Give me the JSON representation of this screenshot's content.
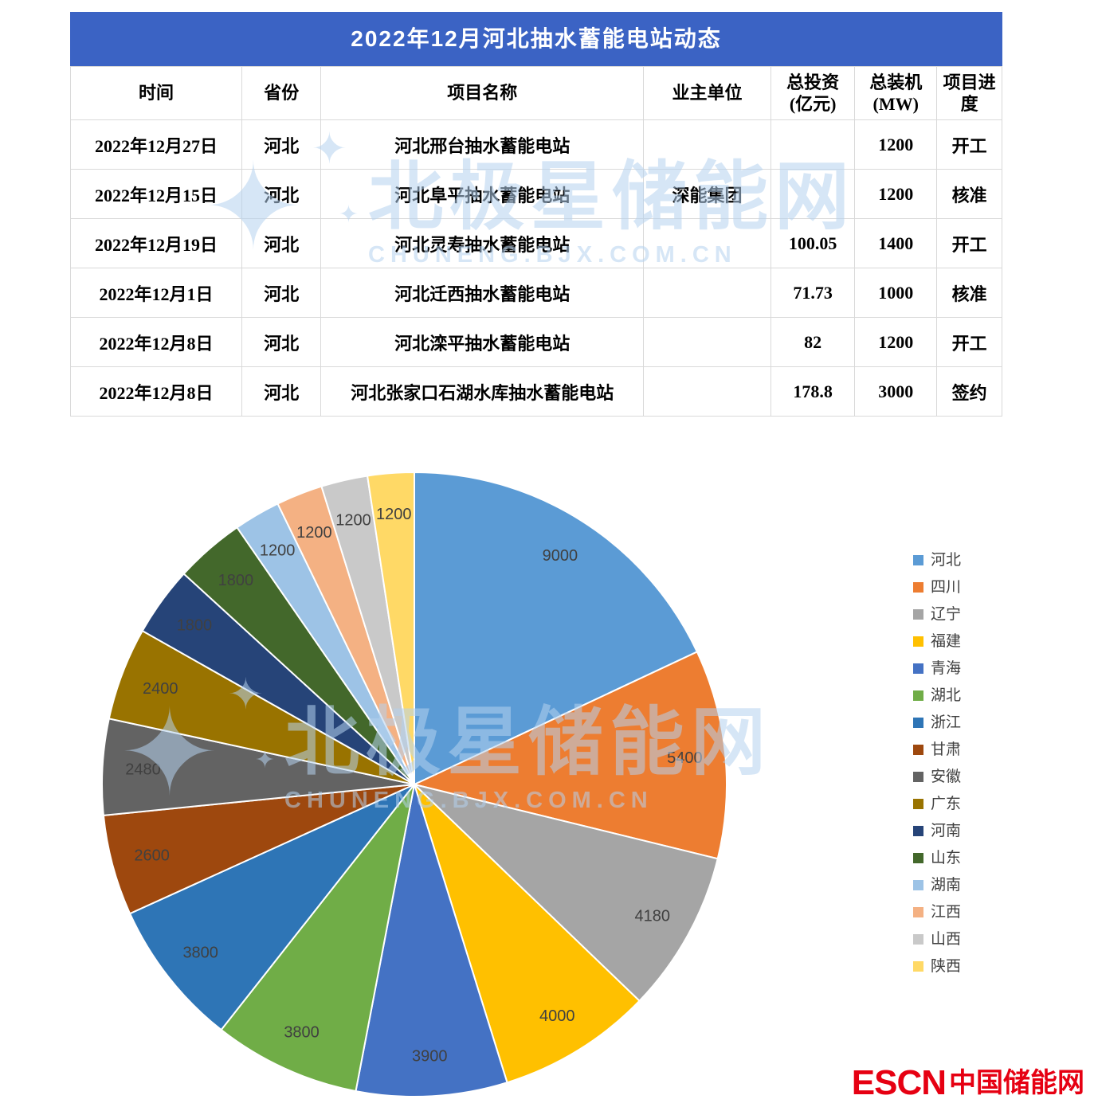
{
  "table": {
    "title": "2022年12月河北抽水蓄能电站动态",
    "columns": [
      "时间",
      "省份",
      "项目名称",
      "业主单位",
      "总投资\n(亿元)",
      "总装机\n(MW)",
      "项目进度"
    ],
    "rows": [
      [
        "2022年12月27日",
        "河北",
        "河北邢台抽水蓄能电站",
        "",
        "",
        "1200",
        "开工"
      ],
      [
        "2022年12月15日",
        "河北",
        "河北阜平抽水蓄能电站",
        "深能集团",
        "",
        "1200",
        "核准"
      ],
      [
        "2022年12月19日",
        "河北",
        "河北灵寿抽水蓄能电站",
        "",
        "100.05",
        "1400",
        "开工"
      ],
      [
        "2022年12月1日",
        "河北",
        "河北迁西抽水蓄能电站",
        "",
        "71.73",
        "1000",
        "核准"
      ],
      [
        "2022年12月8日",
        "河北",
        "河北滦平抽水蓄能电站",
        "",
        "82",
        "1200",
        "开工"
      ],
      [
        "2022年12月8日",
        "河北",
        "河北张家口石湖水库抽水蓄能电站",
        "",
        "178.8",
        "3000",
        "签约"
      ]
    ]
  },
  "chart_data": {
    "type": "pie",
    "legend_position": "right",
    "label_position": "inside",
    "start_angle_deg": 0,
    "direction": "clockwise",
    "series": [
      {
        "name": "河北",
        "value": 9000,
        "color": "#5B9BD5"
      },
      {
        "name": "四川",
        "value": 5400,
        "color": "#ED7D31"
      },
      {
        "name": "辽宁",
        "value": 4180,
        "color": "#A5A5A5"
      },
      {
        "name": "福建",
        "value": 4000,
        "color": "#FFC000"
      },
      {
        "name": "青海",
        "value": 3900,
        "color": "#4472C4"
      },
      {
        "name": "湖北",
        "value": 3800,
        "color": "#70AD47"
      },
      {
        "name": "浙江",
        "value": 3800,
        "color": "#2E75B6"
      },
      {
        "name": "甘肃",
        "value": 2600,
        "color": "#9E480E"
      },
      {
        "name": "安徽",
        "value": 2480,
        "color": "#636363"
      },
      {
        "name": "广东",
        "value": 2400,
        "color": "#997300"
      },
      {
        "name": "河南",
        "value": 1800,
        "color": "#264478"
      },
      {
        "name": "山东",
        "value": 1800,
        "color": "#43682B"
      },
      {
        "name": "湖南",
        "value": 1200,
        "color": "#9DC3E6"
      },
      {
        "name": "江西",
        "value": 1200,
        "color": "#F4B183"
      },
      {
        "name": "山西",
        "value": 1200,
        "color": "#C9C9C9"
      },
      {
        "name": "陕西",
        "value": 1200,
        "color": "#FFD966"
      }
    ]
  },
  "watermark": {
    "site_name": "北极星储能网",
    "site_url": "CHUNENG.BJX.COM.CN"
  },
  "footer": {
    "brand": "ESCN",
    "brand_cn": "中国储能网"
  },
  "colors": {
    "table_header_bg": "#3B63C4",
    "brand_red": "#E60012"
  }
}
